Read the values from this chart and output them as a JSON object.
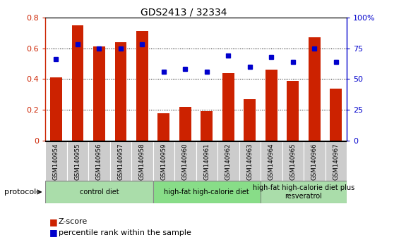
{
  "title": "GDS2413 / 32334",
  "categories": [
    "GSM140954",
    "GSM140955",
    "GSM140956",
    "GSM140957",
    "GSM140958",
    "GSM140959",
    "GSM140960",
    "GSM140961",
    "GSM140962",
    "GSM140963",
    "GSM140964",
    "GSM140965",
    "GSM140966",
    "GSM140967"
  ],
  "zscore": [
    0.41,
    0.75,
    0.61,
    0.64,
    0.71,
    0.18,
    0.22,
    0.19,
    0.44,
    0.27,
    0.46,
    0.39,
    0.67,
    0.34
  ],
  "percentile": [
    66,
    78,
    75,
    75,
    78,
    56,
    58,
    56,
    69,
    60,
    68,
    64,
    75,
    64
  ],
  "bar_color": "#cc2200",
  "dot_color": "#0000cc",
  "ylim_left": [
    0,
    0.8
  ],
  "ylim_right": [
    0,
    100
  ],
  "yticks_left": [
    0,
    0.2,
    0.4,
    0.6,
    0.8
  ],
  "yticks_right": [
    0,
    25,
    50,
    75,
    100
  ],
  "ytick_labels_left": [
    "0",
    "0.2",
    "0.4",
    "0.6",
    "0.8"
  ],
  "ytick_labels_right": [
    "0",
    "25",
    "50",
    "75",
    "100%"
  ],
  "groups": [
    {
      "label": "control diet",
      "start": 0,
      "end": 4,
      "color": "#aaddaa"
    },
    {
      "label": "high-fat high-calorie diet",
      "start": 5,
      "end": 9,
      "color": "#88dd88"
    },
    {
      "label": "high-fat high-calorie diet plus\nresveratrol",
      "start": 10,
      "end": 13,
      "color": "#aaddaa"
    }
  ],
  "protocol_label": "protocol",
  "legend_zscore": "Z-score",
  "legend_percentile": "percentile rank within the sample",
  "bar_color_hex": "#cc2200",
  "dot_color_hex": "#0000cc",
  "xlabel_color_left": "#cc2200",
  "xlabel_color_right": "#0000cc",
  "tick_bg_color": "#cccccc",
  "group_border_color": "#888888",
  "spine_color": "#000000"
}
